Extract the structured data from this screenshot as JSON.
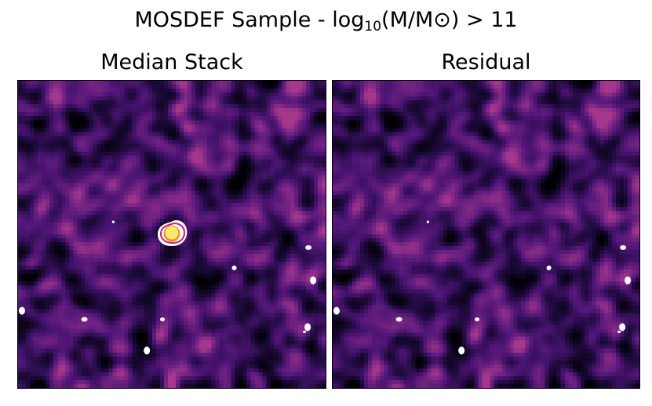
{
  "figure": {
    "suptitle_prefix": "MOSDEF Sample - log",
    "suptitle_sub": "10",
    "suptitle_suffix": "(M/M⊙) > 11"
  },
  "panels": [
    {
      "title": "Median Stack",
      "has_central_source": true
    },
    {
      "title": "Residual",
      "has_central_source": false
    }
  ],
  "colors": {
    "background": "#ffffff",
    "colormap": "magma",
    "cmap_low": "#000004",
    "cmap_mid": "#51127c",
    "cmap_high": "#fcfdbf",
    "contour_outer": "#ffffff",
    "contour_mid": "#c51b7d",
    "contour_inner": "#f08a2a",
    "core": "#f6ec6a"
  }
}
